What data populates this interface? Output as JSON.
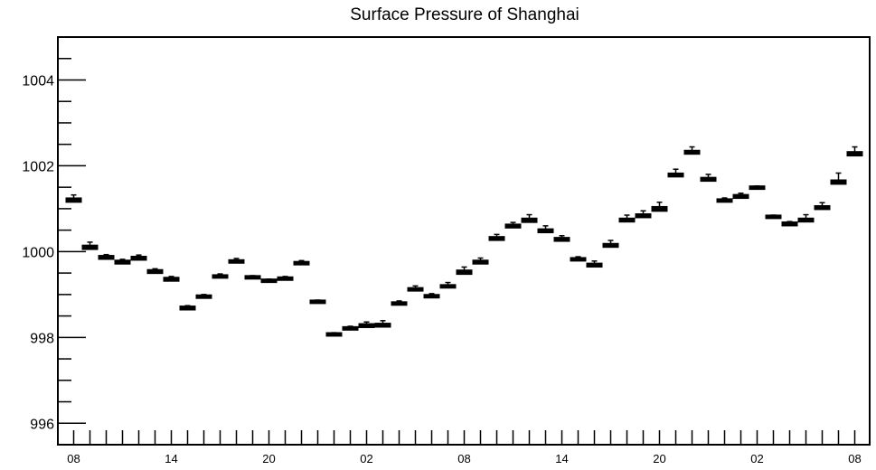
{
  "chart_data": {
    "type": "boxplot",
    "title": "Surface Pressure of Shanghai",
    "xlabel": "",
    "ylabel": "",
    "ylim": [
      995.5,
      1005.0
    ],
    "yticks": [
      996,
      998,
      1000,
      1002,
      1004
    ],
    "ytick_labels": [
      "996",
      "998",
      "1000",
      "1002",
      "1004"
    ],
    "xtick_labels": [
      "08",
      "14",
      "20",
      "02",
      "08",
      "14",
      "20",
      "02",
      "08"
    ],
    "xtick_label_index": [
      0,
      6,
      12,
      18,
      24,
      30,
      36,
      42,
      48
    ],
    "n_categories": 49,
    "grid": false,
    "values": [
      1001.22,
      1000.12,
      999.88,
      999.77,
      999.86,
      999.55,
      999.37,
      998.7,
      998.96,
      999.43,
      999.78,
      999.41,
      999.33,
      999.38,
      999.74,
      998.84,
      998.08,
      998.22,
      998.29,
      998.3,
      998.8,
      999.13,
      998.97,
      999.2,
      999.54,
      999.77,
      1000.32,
      1000.61,
      1000.75,
      1000.5,
      1000.3,
      999.83,
      999.7,
      1000.16,
      1000.75,
      1000.85,
      1001.02,
      1001.8,
      1002.33,
      1001.7,
      1001.2,
      1001.3,
      1001.5,
      1000.82,
      1000.66,
      1000.75,
      1001.04,
      1001.64,
      1002.3
    ],
    "whisker_high": [
      1001.32,
      1000.22,
      999.93,
      999.82,
      999.92,
      999.6,
      999.42,
      998.74,
      999.0,
      999.48,
      999.84,
      999.44,
      999.36,
      999.42,
      999.79,
      998.87,
      998.11,
      998.26,
      998.36,
      998.39,
      998.85,
      999.2,
      999.02,
      999.28,
      999.64,
      999.85,
      1000.4,
      1000.68,
      1000.86,
      1000.6,
      1000.37,
      999.88,
      999.78,
      1000.26,
      1000.85,
      1000.95,
      1001.15,
      1001.92,
      1002.44,
      1001.8,
      1001.25,
      1001.36,
      1001.53,
      1000.85,
      1000.7,
      1000.86,
      1001.14,
      1001.83,
      1002.44
    ],
    "whisker_low": [
      1001.18,
      1000.08,
      999.85,
      999.74,
      999.83,
      999.52,
      999.34,
      998.67,
      998.94,
      999.41,
      999.76,
      999.39,
      999.31,
      999.36,
      999.72,
      998.82,
      998.06,
      998.2,
      998.26,
      998.27,
      998.78,
      999.11,
      998.95,
      999.18,
      999.5,
      999.74,
      1000.29,
      1000.58,
      1000.71,
      1000.47,
      1000.27,
      999.81,
      999.67,
      1000.13,
      1000.72,
      1000.82,
      1000.97,
      1001.77,
      1002.3,
      1001.67,
      1001.18,
      1001.27,
      1001.48,
      1000.8,
      1000.63,
      1000.72,
      1001.01,
      1001.6,
      1002.26
    ]
  }
}
